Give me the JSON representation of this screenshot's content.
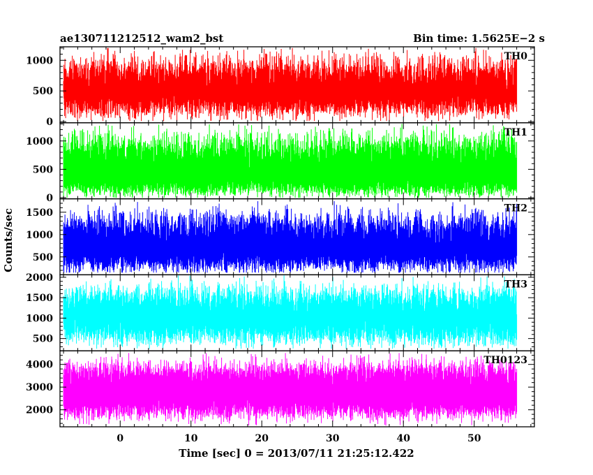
{
  "header": {
    "title": "ae130711212512_wam2_bst",
    "bin_time": "Bin time: 1.5625E−2 s"
  },
  "chart_data": {
    "type": "line",
    "title": "ae130711212512_wam2_bst",
    "subtitle": "Bin time: 1.5625E−2 s",
    "xlabel": "Time [sec] 0 = 2013/07/11 21:25:12.422",
    "ylabel": "Counts/sec",
    "xlim": [
      -8.5,
      58.5
    ],
    "x_ticks": [
      0,
      10,
      20,
      30,
      40,
      50
    ],
    "x_tick_labels": [
      "0",
      "10",
      "20",
      "30",
      "40",
      "50"
    ],
    "data_x_range": [
      -8,
      56
    ],
    "bin_time_s": 0.015625,
    "series": [
      {
        "name": "TH0",
        "color": "#ff0000",
        "ylim": [
          -20,
          1220
        ],
        "ticks": [
          0,
          500,
          1000
        ],
        "tick_labels": [
          "0",
          "500",
          "1000"
        ],
        "baseline": 230,
        "upper_mean": 820,
        "upper_spread": 260,
        "lower_mean": 230,
        "lower_spread": 170,
        "spike_max": 1200,
        "spike_min": 10
      },
      {
        "name": "TH1",
        "color": "#00ff00",
        "ylim": [
          -20,
          1320
        ],
        "ticks": [
          0,
          500,
          1000
        ],
        "tick_labels": [
          "0",
          "500",
          "1000"
        ],
        "baseline": 150,
        "upper_mean": 880,
        "upper_spread": 280,
        "lower_mean": 160,
        "lower_spread": 130,
        "spike_max": 1300,
        "spike_min": 0
      },
      {
        "name": "TH2",
        "color": "#0000ff",
        "ylim": [
          100,
          1800
        ],
        "ticks": [
          500,
          1000,
          1500
        ],
        "tick_labels": [
          "500",
          "1000",
          "1500"
        ],
        "baseline": 400,
        "upper_mean": 1200,
        "upper_spread": 330,
        "lower_mean": 350,
        "lower_spread": 200,
        "spike_max": 1750,
        "spike_min": 150
      },
      {
        "name": "TH3",
        "color": "#00ffff",
        "ylim": [
          200,
          2060
        ],
        "ticks": [
          500,
          1000,
          1500,
          2000
        ],
        "tick_labels": [
          "500",
          "1000",
          "1500",
          "2000"
        ],
        "baseline": 800,
        "upper_mean": 1500,
        "upper_spread": 320,
        "lower_mean": 600,
        "lower_spread": 260,
        "spike_max": 2050,
        "spike_min": 250
      },
      {
        "name": "TH0123",
        "color": "#ff00ff",
        "ylim": [
          1250,
          4600
        ],
        "ticks": [
          2000,
          3000,
          4000
        ],
        "tick_labels": [
          "2000",
          "3000",
          "4000"
        ],
        "baseline": 2000,
        "upper_mean": 3700,
        "upper_spread": 500,
        "lower_mean": 1950,
        "lower_spread": 400,
        "spike_max": 4500,
        "spike_min": 1300
      }
    ]
  }
}
